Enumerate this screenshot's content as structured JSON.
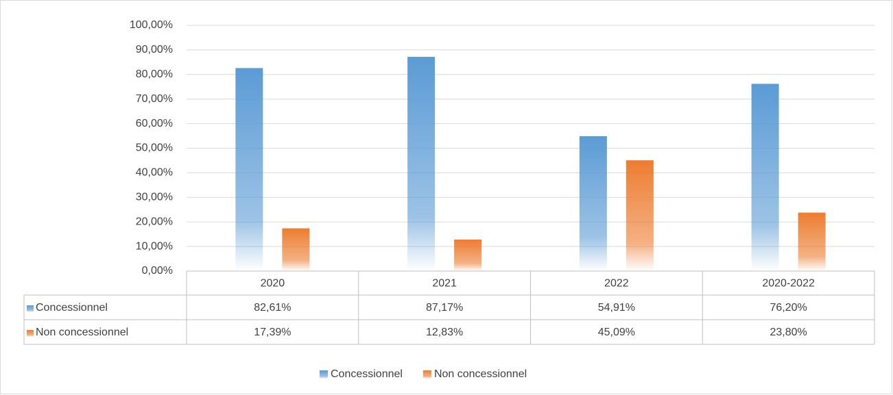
{
  "chart_data": {
    "type": "bar",
    "categories": [
      "2020",
      "2021",
      "2022",
      "2020-2022"
    ],
    "series": [
      {
        "name": "Concessionnel",
        "color": "#5b9bd5",
        "values": [
          82.61,
          87.17,
          54.91,
          76.2
        ],
        "value_labels": [
          "82,61%",
          "87,17%",
          "54,91%",
          "76,20%"
        ]
      },
      {
        "name": "Non concessionnel",
        "color": "#ed7d31",
        "values": [
          17.39,
          12.83,
          45.09,
          23.8
        ],
        "value_labels": [
          "17,39%",
          "12,83%",
          "45,09%",
          "23,80%"
        ]
      }
    ],
    "ylim": [
      0,
      100
    ],
    "yticks": [
      {
        "value": 0,
        "label": "0,00%"
      },
      {
        "value": 10,
        "label": "10,00%"
      },
      {
        "value": 20,
        "label": "20,00%"
      },
      {
        "value": 30,
        "label": "30,00%"
      },
      {
        "value": 40,
        "label": "40,00%"
      },
      {
        "value": 50,
        "label": "50,00%"
      },
      {
        "value": 60,
        "label": "60,00%"
      },
      {
        "value": 70,
        "label": "70,00%"
      },
      {
        "value": 80,
        "label": "80,00%"
      },
      {
        "value": 90,
        "label": "90,00%"
      },
      {
        "value": 100,
        "label": "100,00%"
      }
    ],
    "grid": true,
    "legend": "bottom"
  }
}
